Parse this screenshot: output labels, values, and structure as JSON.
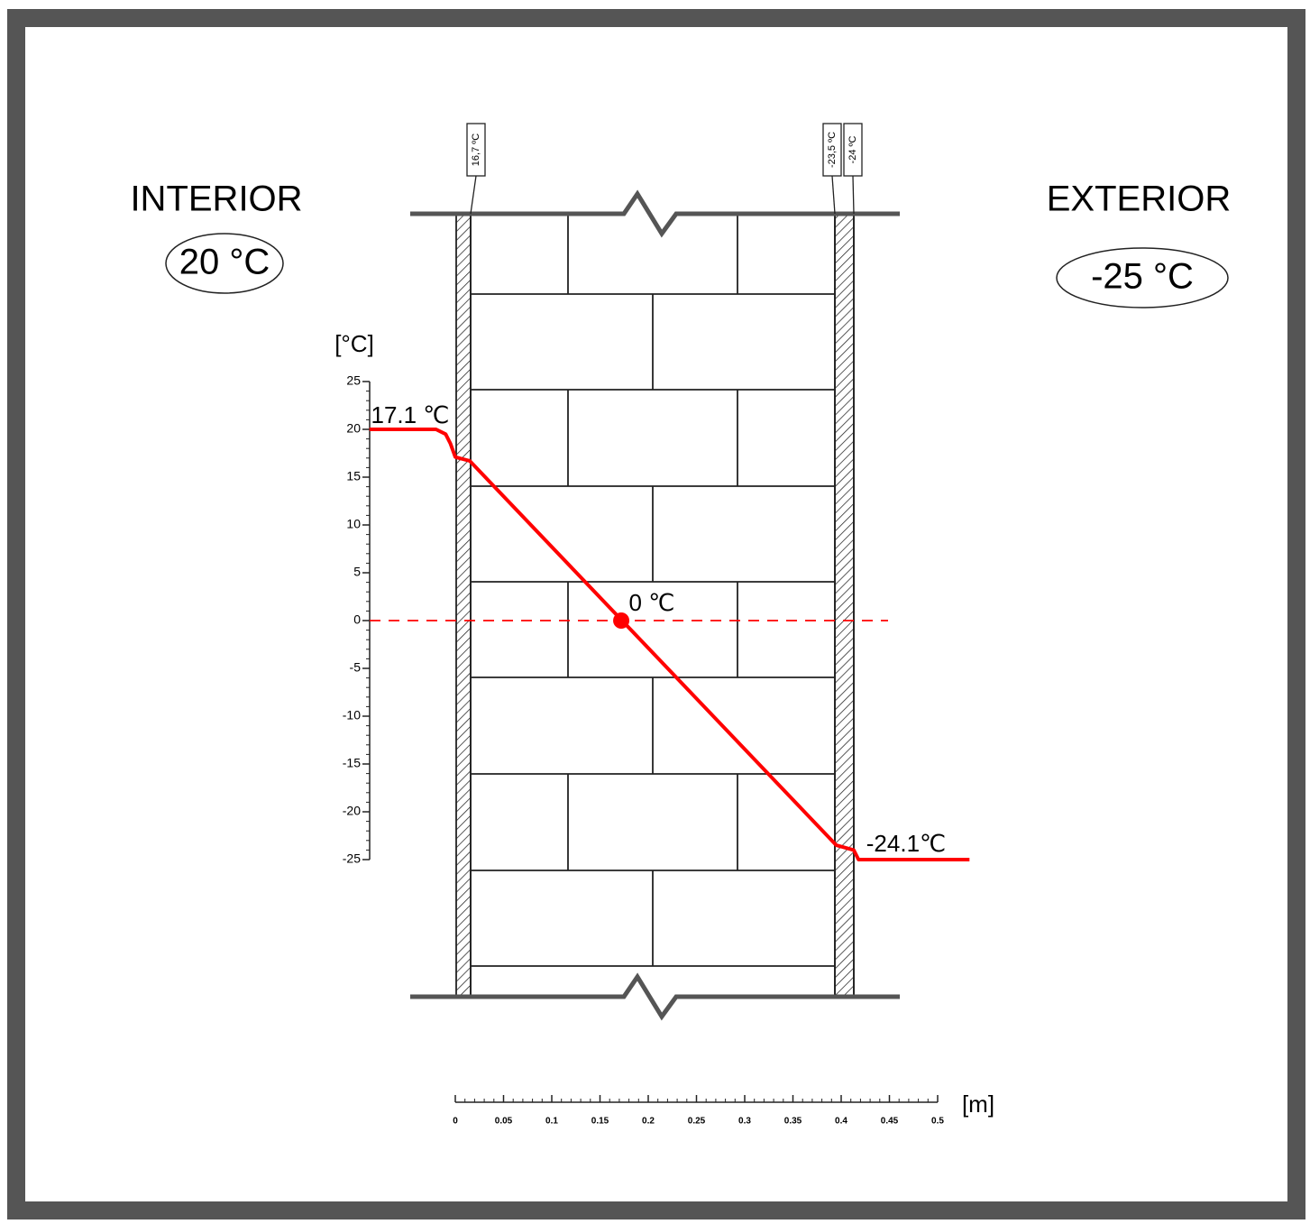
{
  "labels": {
    "interior": "INTERIOR",
    "interior_temp": "20 °C",
    "exterior": "EXTERIOR",
    "exterior_temp": "-25 °C",
    "y_unit": "[°C]",
    "x_unit": "[m]",
    "surface_in": "17.1 ℃",
    "zero": "0 ℃",
    "surface_out": "-24.1℃",
    "tag_1": "16,7 ºC",
    "tag_2": "-23,5 ºC",
    "tag_3": "-24 ºC"
  },
  "y_axis": {
    "ylim": [
      -25,
      25
    ],
    "yticks": [
      25,
      20,
      15,
      10,
      5,
      0,
      -5,
      -10,
      -15,
      -20,
      -25
    ]
  },
  "x_axis": {
    "xlim": [
      0,
      0.5
    ],
    "xticks": [
      0,
      0.05,
      0.1,
      0.15,
      0.2,
      0.25,
      0.3,
      0.35,
      0.4,
      0.45,
      0.5
    ]
  },
  "profile": {
    "x": [
      -0.089,
      -0.02,
      -0.01,
      -0.005,
      0,
      0.015,
      0.395,
      0.413,
      0.418,
      0.533
    ],
    "t": [
      20,
      20,
      19.5,
      18.5,
      17.1,
      16.7,
      -23.5,
      -24,
      -25,
      -25
    ]
  },
  "zero_point": {
    "x": 0.172,
    "t": 0
  }
}
